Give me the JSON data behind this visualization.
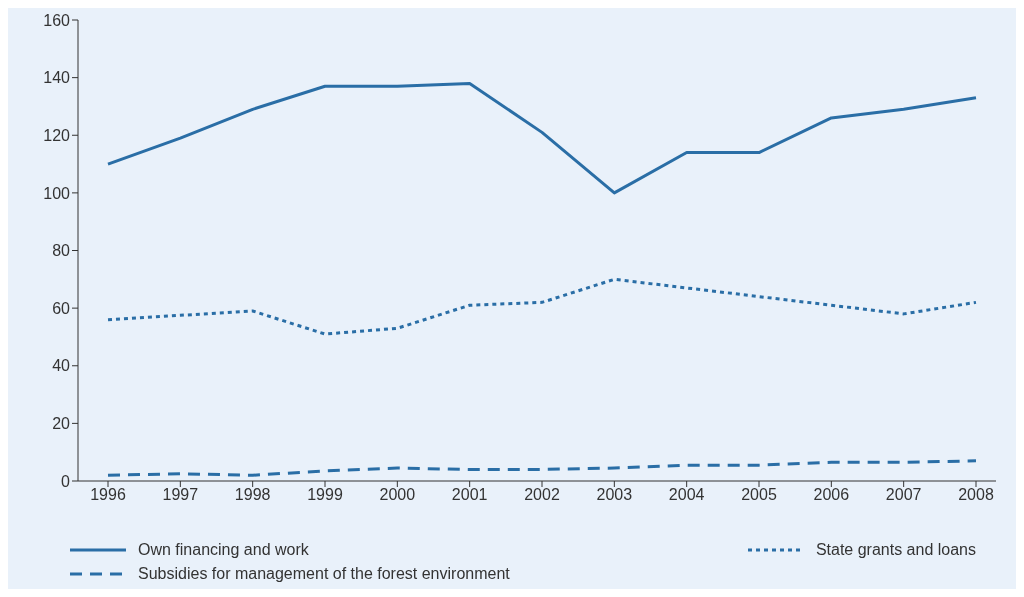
{
  "chart_data": {
    "type": "line",
    "categories": [
      "1996",
      "1997",
      "1998",
      "1999",
      "2000",
      "2001",
      "2002",
      "2003",
      "2004",
      "2005",
      "2006",
      "2007",
      "2008"
    ],
    "series": [
      {
        "name": "Own financing and work",
        "color": "#2a6ea6",
        "line_style": "solid",
        "values": [
          110,
          119,
          129,
          137,
          137,
          138,
          121,
          100,
          114,
          114,
          126,
          129,
          133
        ]
      },
      {
        "name": "State grants and loans",
        "color": "#2a6ea6",
        "line_style": "dotted",
        "values": [
          56,
          57.5,
          59,
          51,
          53,
          61,
          62,
          70,
          67,
          64,
          61,
          58,
          62
        ]
      },
      {
        "name": "Subsidies for management of the forest environment",
        "color": "#2a6ea6",
        "line_style": "dashed",
        "values": [
          2,
          2.5,
          2,
          3.5,
          4.5,
          4,
          4,
          4.5,
          5.5,
          5.5,
          6.5,
          6.5,
          7
        ]
      }
    ],
    "ylim": [
      0,
      160
    ],
    "yticks": [
      0,
      20,
      40,
      60,
      80,
      100,
      120,
      140,
      160
    ],
    "legend": "bottom",
    "marker": "none"
  }
}
